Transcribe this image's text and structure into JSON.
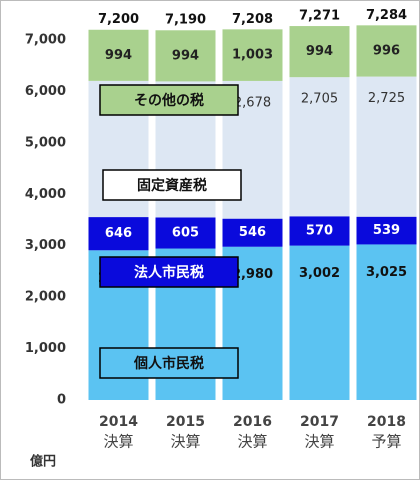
{
  "chart_data": {
    "type": "stacked_bar",
    "unit": "億円",
    "categories": [
      "2014",
      "2015",
      "2016",
      "2017",
      "2018"
    ],
    "category_sublabels": [
      "決算",
      "決算",
      "決算",
      "決算",
      "予算"
    ],
    "series": [
      {
        "name": "個人市民税",
        "color": "#5bc3f2",
        "label_color": "#111",
        "values": [
          2911,
          2945,
          2980,
          3002,
          3025
        ],
        "value_labels": [
          "2,911",
          "2,945",
          "2,980",
          "3,002",
          "3,025"
        ]
      },
      {
        "name": "法人市民税",
        "color": "#0a0adc",
        "label_color": "#fff",
        "values": [
          646,
          605,
          546,
          570,
          539
        ],
        "value_labels": [
          "646",
          "605",
          "546",
          "570",
          "539"
        ]
      },
      {
        "name": "固定資産税",
        "color": "#dde7f3",
        "label_color": "#333",
        "values": [
          2648,
          2645,
          2678,
          2705,
          2725
        ],
        "value_labels": [
          "2,648",
          "2,645",
          "2,678",
          "2,705",
          "2,725"
        ]
      },
      {
        "name": "その他の税",
        "color": "#a9d18e",
        "label_color": "#222",
        "values": [
          994,
          994,
          1003,
          994,
          996
        ],
        "value_labels": [
          "994",
          "994",
          "1,003",
          "994",
          "996"
        ]
      }
    ],
    "totals": [
      7200,
      7190,
      7208,
      7271,
      7284
    ],
    "total_labels": [
      "7,200",
      "7,190",
      "7,208",
      "7,271",
      "7,284"
    ],
    "ylim": [
      0,
      7700
    ],
    "yticks": [
      0,
      {
        "value": 1000,
        "label": "1,000"
      },
      {
        "value": 2000,
        "label": "2,000"
      },
      {
        "value": 3000,
        "label": "3,000"
      },
      {
        "value": 4000,
        "label": "4,000"
      },
      {
        "value": 5000,
        "label": "5,000"
      },
      {
        "value": 6000,
        "label": "6,000"
      },
      {
        "value": 7000,
        "label": "7,000"
      }
    ]
  }
}
